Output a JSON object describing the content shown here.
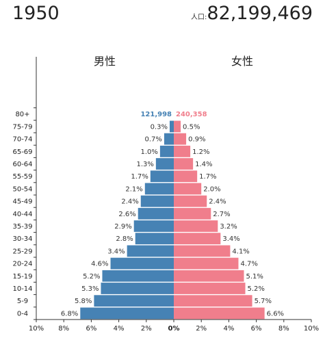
{
  "header": {
    "year": "1950",
    "population_label": "人口:",
    "population_value": "82,199,469"
  },
  "chart_data": {
    "type": "bar",
    "orientation": "horizontal-population-pyramid",
    "side_labels": {
      "male": "男性",
      "female": "女性"
    },
    "categories": [
      "0-4",
      "5-9",
      "10-14",
      "15-19",
      "20-24",
      "25-29",
      "30-34",
      "35-39",
      "40-44",
      "45-49",
      "50-54",
      "55-59",
      "60-64",
      "65-69",
      "70-74",
      "75-79",
      "80+"
    ],
    "series": [
      {
        "name": "男性",
        "values": [
          6.8,
          5.8,
          5.3,
          5.2,
          4.6,
          3.4,
          2.8,
          2.9,
          2.6,
          2.4,
          2.1,
          1.7,
          1.3,
          1.0,
          0.7,
          0.3,
          null
        ],
        "labels": [
          "6.8%",
          "5.8%",
          "5.3%",
          "5.2%",
          "4.6%",
          "3.4%",
          "2.8%",
          "2.9%",
          "2.6%",
          "2.4%",
          "2.1%",
          "1.7%",
          "1.3%",
          "1.0%",
          "0.7%",
          "0.3%",
          "121,998"
        ]
      },
      {
        "name": "女性",
        "values": [
          6.6,
          5.7,
          5.2,
          5.1,
          4.7,
          4.1,
          3.4,
          3.2,
          2.7,
          2.4,
          2.0,
          1.7,
          1.4,
          1.2,
          0.9,
          0.5,
          null
        ],
        "labels": [
          "6.6%",
          "5.7%",
          "5.2%",
          "5.1%",
          "4.7%",
          "4.1%",
          "3.4%",
          "3.2%",
          "2.7%",
          "2.4%",
          "2.0%",
          "1.7%",
          "1.4%",
          "1.2%",
          "0.9%",
          "0.5%",
          "240,358"
        ]
      }
    ],
    "xlim": [
      -10,
      10
    ],
    "x_ticks": [
      "10%",
      "8%",
      "6%",
      "4%",
      "2%",
      "0%",
      "2%",
      "4%",
      "6%",
      "8%",
      "10%"
    ],
    "grid": false,
    "colors": {
      "male": "#4682b4",
      "female": "#f07e8c",
      "axis": "#333333"
    }
  }
}
